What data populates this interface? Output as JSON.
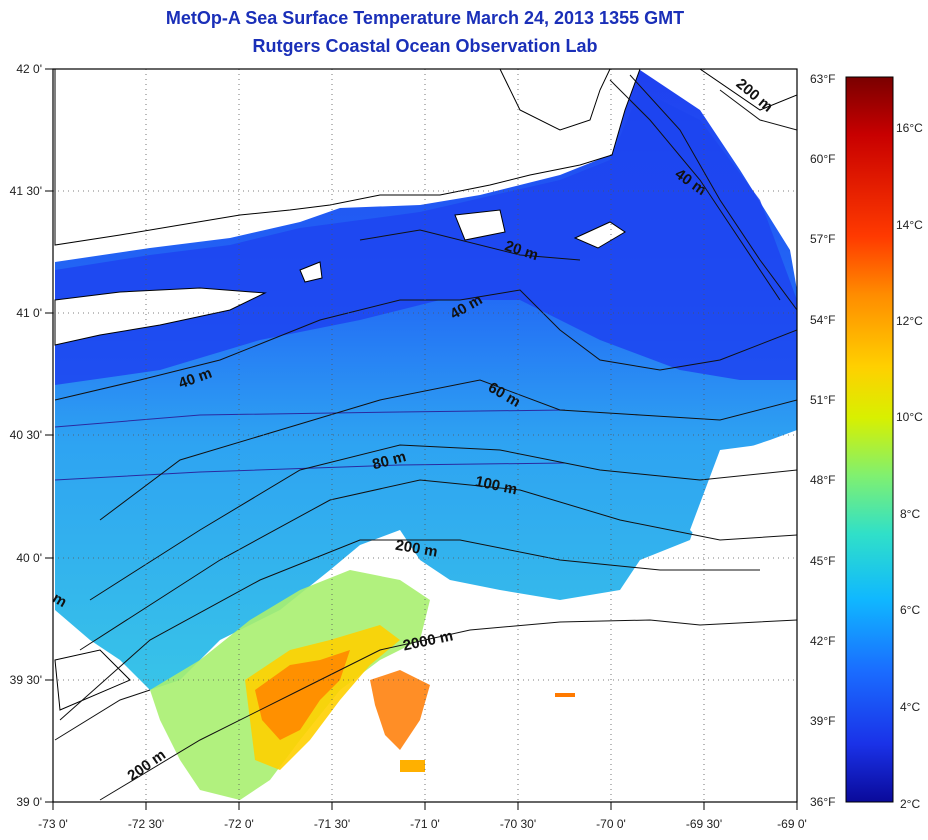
{
  "title": {
    "line1": "MetOp-A Sea Surface Temperature March 24, 2013 1355 GMT",
    "line2": "Rutgers Coastal Ocean Observation Lab"
  },
  "map": {
    "lat_labels": [
      "42 0'",
      "41 30'",
      "41 0'",
      "40 30'",
      "40 0'",
      "39 30'",
      "39 0'"
    ],
    "lon_labels": [
      "-73 0'",
      "-72 30'",
      "-72 0'",
      "-71 30'",
      "-71 0'",
      "-70 30'",
      "-70 0'",
      "-69 30'",
      "-69 0'"
    ],
    "fahrenheit_labels": [
      "63°F",
      "60°F",
      "57°F",
      "54°F",
      "51°F",
      "48°F",
      "45°F",
      "42°F",
      "39°F",
      "36°F"
    ],
    "depth_labels": [
      "200 m",
      "40 m",
      "20 m",
      "40 m",
      "40 m",
      "60 m",
      "80 m",
      "100 m",
      "200 m",
      "2000 m",
      "200 m",
      "m"
    ]
  },
  "colorbar": {
    "celsius_labels": [
      "16°C",
      "14°C",
      "12°C",
      "10°C",
      "8°C",
      "6°C",
      "4°C",
      "2°C"
    ],
    "colors": [
      "#7a0000",
      "#c80000",
      "#ff3a00",
      "#ff8c00",
      "#ffd000",
      "#d8f000",
      "#80f070",
      "#30e0c8",
      "#10b8ff",
      "#1a6cff",
      "#1a32e8",
      "#0a0a9a"
    ]
  }
}
